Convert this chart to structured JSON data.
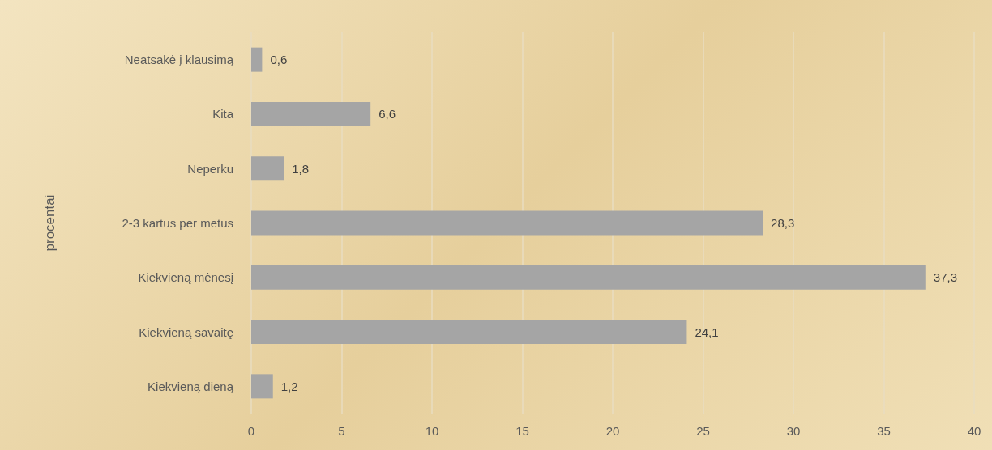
{
  "chart_data": {
    "type": "bar",
    "orientation": "horizontal",
    "ylabel": "procentai",
    "categories": [
      "Neatsakė į klausimą",
      "Kita",
      "Neperku",
      "2-3 kartus per metus",
      "Kiekvieną mėnesį",
      "Kiekvieną savaitę",
      "Kiekvieną dieną"
    ],
    "values": [
      0.6,
      6.6,
      1.8,
      28.3,
      37.3,
      24.1,
      1.2
    ],
    "value_labels": [
      "0,6",
      "6,6",
      "1,8",
      "28,3",
      "37,3",
      "24,1",
      "1,2"
    ],
    "color": "#a5a5a5",
    "xlim": [
      0,
      40
    ],
    "xticks": [
      0,
      5,
      10,
      15,
      20,
      25,
      30,
      35,
      40
    ],
    "grid": "x"
  }
}
